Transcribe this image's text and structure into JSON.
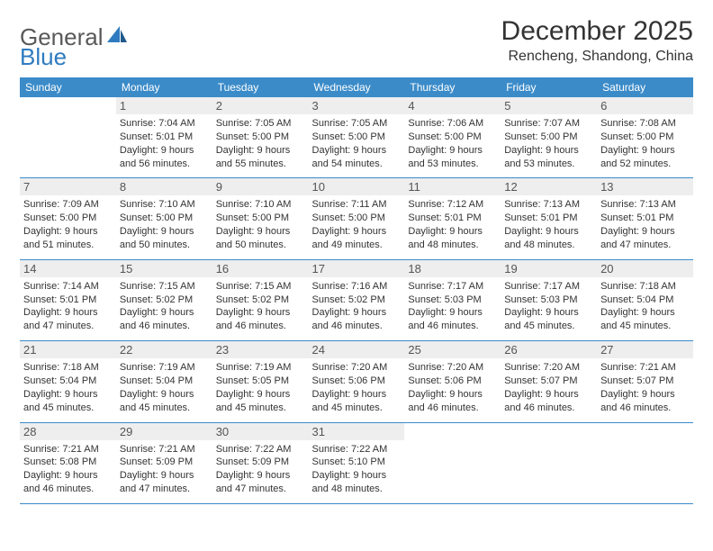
{
  "brand": {
    "name_a": "General",
    "name_b": "Blue"
  },
  "title": "December 2025",
  "location": "Rencheng, Shandong, China",
  "colors": {
    "header_bg": "#3b8bc9",
    "header_fg": "#ffffff",
    "daynum_bg": "#eeeeee",
    "rule": "#3b8bc9",
    "brand_gray": "#595959",
    "brand_blue": "#2f7bbf"
  },
  "typography": {
    "title_fontsize": 30,
    "location_fontsize": 16,
    "header_fontsize": 12,
    "cell_fontsize": 11,
    "daynum_fontsize": 13
  },
  "day_headers": [
    "Sunday",
    "Monday",
    "Tuesday",
    "Wednesday",
    "Thursday",
    "Friday",
    "Saturday"
  ],
  "weeks": [
    [
      null,
      {
        "n": "1",
        "sunrise": "Sunrise: 7:04 AM",
        "sunset": "Sunset: 5:01 PM",
        "daylight": "Daylight: 9 hours and 56 minutes."
      },
      {
        "n": "2",
        "sunrise": "Sunrise: 7:05 AM",
        "sunset": "Sunset: 5:00 PM",
        "daylight": "Daylight: 9 hours and 55 minutes."
      },
      {
        "n": "3",
        "sunrise": "Sunrise: 7:05 AM",
        "sunset": "Sunset: 5:00 PM",
        "daylight": "Daylight: 9 hours and 54 minutes."
      },
      {
        "n": "4",
        "sunrise": "Sunrise: 7:06 AM",
        "sunset": "Sunset: 5:00 PM",
        "daylight": "Daylight: 9 hours and 53 minutes."
      },
      {
        "n": "5",
        "sunrise": "Sunrise: 7:07 AM",
        "sunset": "Sunset: 5:00 PM",
        "daylight": "Daylight: 9 hours and 53 minutes."
      },
      {
        "n": "6",
        "sunrise": "Sunrise: 7:08 AM",
        "sunset": "Sunset: 5:00 PM",
        "daylight": "Daylight: 9 hours and 52 minutes."
      }
    ],
    [
      {
        "n": "7",
        "sunrise": "Sunrise: 7:09 AM",
        "sunset": "Sunset: 5:00 PM",
        "daylight": "Daylight: 9 hours and 51 minutes."
      },
      {
        "n": "8",
        "sunrise": "Sunrise: 7:10 AM",
        "sunset": "Sunset: 5:00 PM",
        "daylight": "Daylight: 9 hours and 50 minutes."
      },
      {
        "n": "9",
        "sunrise": "Sunrise: 7:10 AM",
        "sunset": "Sunset: 5:00 PM",
        "daylight": "Daylight: 9 hours and 50 minutes."
      },
      {
        "n": "10",
        "sunrise": "Sunrise: 7:11 AM",
        "sunset": "Sunset: 5:00 PM",
        "daylight": "Daylight: 9 hours and 49 minutes."
      },
      {
        "n": "11",
        "sunrise": "Sunrise: 7:12 AM",
        "sunset": "Sunset: 5:01 PM",
        "daylight": "Daylight: 9 hours and 48 minutes."
      },
      {
        "n": "12",
        "sunrise": "Sunrise: 7:13 AM",
        "sunset": "Sunset: 5:01 PM",
        "daylight": "Daylight: 9 hours and 48 minutes."
      },
      {
        "n": "13",
        "sunrise": "Sunrise: 7:13 AM",
        "sunset": "Sunset: 5:01 PM",
        "daylight": "Daylight: 9 hours and 47 minutes."
      }
    ],
    [
      {
        "n": "14",
        "sunrise": "Sunrise: 7:14 AM",
        "sunset": "Sunset: 5:01 PM",
        "daylight": "Daylight: 9 hours and 47 minutes."
      },
      {
        "n": "15",
        "sunrise": "Sunrise: 7:15 AM",
        "sunset": "Sunset: 5:02 PM",
        "daylight": "Daylight: 9 hours and 46 minutes."
      },
      {
        "n": "16",
        "sunrise": "Sunrise: 7:15 AM",
        "sunset": "Sunset: 5:02 PM",
        "daylight": "Daylight: 9 hours and 46 minutes."
      },
      {
        "n": "17",
        "sunrise": "Sunrise: 7:16 AM",
        "sunset": "Sunset: 5:02 PM",
        "daylight": "Daylight: 9 hours and 46 minutes."
      },
      {
        "n": "18",
        "sunrise": "Sunrise: 7:17 AM",
        "sunset": "Sunset: 5:03 PM",
        "daylight": "Daylight: 9 hours and 46 minutes."
      },
      {
        "n": "19",
        "sunrise": "Sunrise: 7:17 AM",
        "sunset": "Sunset: 5:03 PM",
        "daylight": "Daylight: 9 hours and 45 minutes."
      },
      {
        "n": "20",
        "sunrise": "Sunrise: 7:18 AM",
        "sunset": "Sunset: 5:04 PM",
        "daylight": "Daylight: 9 hours and 45 minutes."
      }
    ],
    [
      {
        "n": "21",
        "sunrise": "Sunrise: 7:18 AM",
        "sunset": "Sunset: 5:04 PM",
        "daylight": "Daylight: 9 hours and 45 minutes."
      },
      {
        "n": "22",
        "sunrise": "Sunrise: 7:19 AM",
        "sunset": "Sunset: 5:04 PM",
        "daylight": "Daylight: 9 hours and 45 minutes."
      },
      {
        "n": "23",
        "sunrise": "Sunrise: 7:19 AM",
        "sunset": "Sunset: 5:05 PM",
        "daylight": "Daylight: 9 hours and 45 minutes."
      },
      {
        "n": "24",
        "sunrise": "Sunrise: 7:20 AM",
        "sunset": "Sunset: 5:06 PM",
        "daylight": "Daylight: 9 hours and 45 minutes."
      },
      {
        "n": "25",
        "sunrise": "Sunrise: 7:20 AM",
        "sunset": "Sunset: 5:06 PM",
        "daylight": "Daylight: 9 hours and 46 minutes."
      },
      {
        "n": "26",
        "sunrise": "Sunrise: 7:20 AM",
        "sunset": "Sunset: 5:07 PM",
        "daylight": "Daylight: 9 hours and 46 minutes."
      },
      {
        "n": "27",
        "sunrise": "Sunrise: 7:21 AM",
        "sunset": "Sunset: 5:07 PM",
        "daylight": "Daylight: 9 hours and 46 minutes."
      }
    ],
    [
      {
        "n": "28",
        "sunrise": "Sunrise: 7:21 AM",
        "sunset": "Sunset: 5:08 PM",
        "daylight": "Daylight: 9 hours and 46 minutes."
      },
      {
        "n": "29",
        "sunrise": "Sunrise: 7:21 AM",
        "sunset": "Sunset: 5:09 PM",
        "daylight": "Daylight: 9 hours and 47 minutes."
      },
      {
        "n": "30",
        "sunrise": "Sunrise: 7:22 AM",
        "sunset": "Sunset: 5:09 PM",
        "daylight": "Daylight: 9 hours and 47 minutes."
      },
      {
        "n": "31",
        "sunrise": "Sunrise: 7:22 AM",
        "sunset": "Sunset: 5:10 PM",
        "daylight": "Daylight: 9 hours and 48 minutes."
      },
      null,
      null,
      null
    ]
  ]
}
